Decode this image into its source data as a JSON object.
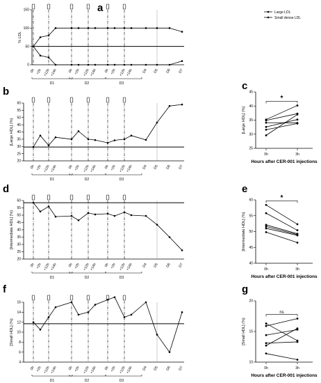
{
  "panel_labels": {
    "a": "a",
    "b": "b",
    "c": "c",
    "d": "d",
    "e": "e",
    "f": "f",
    "g": "g"
  },
  "timepoints": [
    "0h",
    "+2h",
    "+12h",
    "+14h",
    "0h",
    "+2h",
    "+12h",
    "+14h",
    "0h",
    "+2h",
    "+12h",
    "+14h",
    "D4",
    "D5",
    "D6",
    "D7"
  ],
  "day_labels": [
    "D1",
    "D2",
    "D3"
  ],
  "injection_times": [
    "0h",
    "+12h",
    "0h",
    "+12h",
    "0h",
    "+12h"
  ],
  "colors": {
    "line": "#000000",
    "reference": "#000000",
    "vline": "#999999"
  },
  "chart_data": [
    {
      "panel": "a",
      "type": "line",
      "title": "",
      "xlabel": "",
      "ylabel": "% LDL",
      "ylim": [
        0,
        150
      ],
      "yticks": [
        "0",
        "50",
        "100",
        "150"
      ],
      "reference_line": 50,
      "legend": {
        "placement": "top-right"
      },
      "series": [
        {
          "name": "Large LDL",
          "values": [
            50,
            75,
            80,
            100,
            100,
            100,
            100,
            100,
            100,
            100,
            100,
            100,
            100,
            100,
            100,
            90
          ]
        },
        {
          "name": "Small dense LDL",
          "values": [
            50,
            25,
            20,
            0,
            0,
            0,
            0,
            0,
            0,
            0,
            0,
            0,
            0,
            0,
            0,
            10
          ]
        }
      ]
    },
    {
      "panel": "b",
      "type": "line",
      "title": "",
      "xlabel": "",
      "ylabel": "[Large HDL] (%)",
      "ylim": [
        20,
        60
      ],
      "yticks": [
        "20",
        "25",
        "30",
        "35",
        "40",
        "45",
        "50",
        "55",
        "60"
      ],
      "reference_line": 29.6,
      "series": [
        {
          "name": "",
          "values": [
            29.6,
            37.5,
            30.7,
            36.3,
            35.0,
            40.5,
            35.0,
            34.4,
            32.5,
            34.2,
            35.0,
            37.5,
            34.5,
            46.5,
            58.0,
            59.0
          ]
        }
      ]
    },
    {
      "panel": "c",
      "type": "scatter",
      "title": "",
      "xlabel": "Hours after CER-001 injections",
      "ylabel": "[Large HDL] (%)",
      "categories": [
        "0h",
        "3h"
      ],
      "ylim": [
        25,
        45
      ],
      "yticks": [
        "25",
        "30",
        "35",
        "40",
        "45"
      ],
      "significance": "*",
      "pairs": [
        [
          29.6,
          37.0
        ],
        [
          31.6,
          33.8
        ],
        [
          32.6,
          35.2
        ],
        [
          34.1,
          34.0
        ],
        [
          34.9,
          37.3
        ],
        [
          35.2,
          40.2
        ]
      ]
    },
    {
      "panel": "d",
      "type": "line",
      "title": "",
      "xlabel": "",
      "ylabel": "[Intermediate HDL] (%)",
      "ylim": [
        20,
        60
      ],
      "yticks": [
        "20",
        "25",
        "30",
        "35",
        "40",
        "45",
        "50",
        "55",
        "60"
      ],
      "reference_line": 58.5,
      "series": [
        {
          "name": "",
          "values": [
            58.5,
            52.5,
            56.0,
            49.0,
            49.5,
            46.5,
            51.5,
            50.5,
            51.0,
            49.5,
            52.0,
            50.0,
            49.5,
            43.5,
            35.0,
            26.0
          ]
        }
      ]
    },
    {
      "panel": "e",
      "type": "scatter",
      "title": "",
      "xlabel": "Hours after CER-001 injections",
      "ylabel": "[Intermediate HDL] (%)",
      "categories": [
        "0h",
        "3h"
      ],
      "ylim": [
        40,
        60
      ],
      "yticks": [
        "40",
        "45",
        "50",
        "55",
        "60"
      ],
      "significance": "*",
      "pairs": [
        [
          58.4,
          52.3
        ],
        [
          55.8,
          50.4
        ],
        [
          52.1,
          49.3
        ],
        [
          51.6,
          49.0
        ],
        [
          51.0,
          48.8
        ],
        [
          49.8,
          46.5
        ]
      ]
    },
    {
      "panel": "f",
      "type": "line",
      "title": "",
      "xlabel": "",
      "ylabel": "[Small HDL] (%)",
      "ylim": [
        4,
        16
      ],
      "yticks": [
        "4",
        "6",
        "8",
        "10",
        "12",
        "14",
        "16"
      ],
      "reference_line": 11.7,
      "series": [
        {
          "name": "",
          "values": [
            12.0,
            10.5,
            13.0,
            15.0,
            16.0,
            13.5,
            14.0,
            15.5,
            16.5,
            17.0,
            13.0,
            13.5,
            16.0,
            9.5,
            6.0,
            14.0
          ]
        }
      ]
    },
    {
      "panel": "g",
      "type": "scatter",
      "title": "",
      "xlabel": "Hours after CER-001 injections",
      "ylabel": "[Small HDL] (%)",
      "categories": [
        "0h",
        "3h"
      ],
      "ylim": [
        10,
        20
      ],
      "yticks": [
        "10",
        "15",
        "20"
      ],
      "significance": "ns",
      "pairs": [
        [
          16.3,
          13.5
        ],
        [
          15.9,
          17.1
        ],
        [
          14.4,
          15.3
        ],
        [
          13.1,
          13.3
        ],
        [
          12.7,
          15.5
        ],
        [
          11.4,
          10.4
        ]
      ]
    }
  ]
}
